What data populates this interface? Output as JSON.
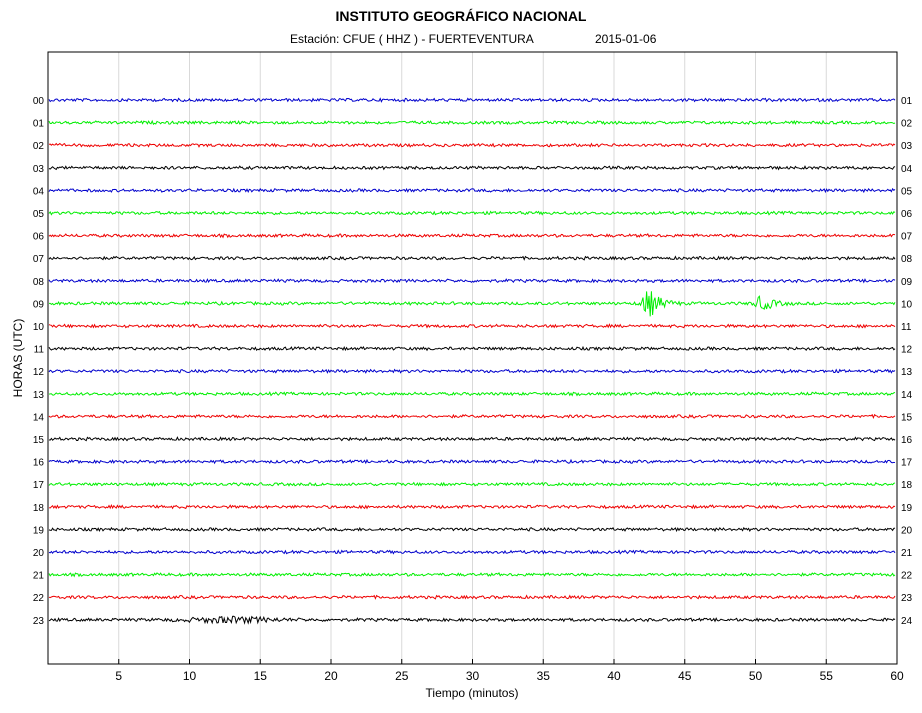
{
  "header": {
    "title": "INSTITUTO GEOGRÁFICO NACIONAL",
    "station_text": "Estación:  CFUE ( HHZ ) - FUERTEVENTURA",
    "date_text": "2015-01-06"
  },
  "chart_data": {
    "type": "line",
    "title": "INSTITUTO GEOGRÁFICO NACIONAL",
    "subtitle": "Estación:  CFUE ( HHZ ) - FUERTEVENTURA          2015-01-06",
    "xlabel": "Tiempo (minutos)",
    "ylabel": "HORAS (UTC)",
    "xlim": [
      0,
      60
    ],
    "x_ticks": [
      "5",
      "10",
      "15",
      "20",
      "25",
      "30",
      "35",
      "40",
      "45",
      "50",
      "55",
      "60"
    ],
    "x_tick_values": [
      5,
      10,
      15,
      20,
      25,
      30,
      35,
      40,
      45,
      50,
      55,
      60
    ],
    "left_labels": [
      "00",
      "01",
      "02",
      "03",
      "04",
      "05",
      "06",
      "07",
      "08",
      "09",
      "10",
      "11",
      "12",
      "13",
      "14",
      "15",
      "16",
      "17",
      "18",
      "19",
      "20",
      "21",
      "22",
      "23"
    ],
    "right_labels": [
      "01",
      "02",
      "03",
      "04",
      "05",
      "06",
      "07",
      "08",
      "09",
      "10",
      "11",
      "12",
      "13",
      "14",
      "15",
      "16",
      "17",
      "18",
      "19",
      "20",
      "21",
      "22",
      "23",
      "24"
    ],
    "trace_colors": [
      "#0000cc",
      "#00ee00",
      "#ee0000",
      "#000000"
    ],
    "grid": "vertical",
    "events": [
      {
        "hour": 9,
        "minute": 42.5,
        "amplitude": 3.5
      },
      {
        "hour": 9,
        "minute": 50.5,
        "amplitude": 1.8
      }
    ],
    "noisy_segments": [
      {
        "hour": 23,
        "minute": 13,
        "amplitude": 1.2
      }
    ]
  }
}
